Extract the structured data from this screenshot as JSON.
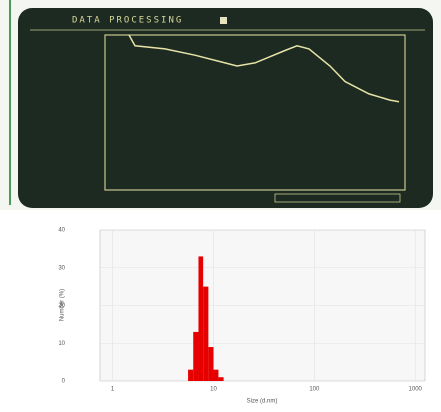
{
  "chart_data": [
    {
      "type": "line",
      "title": "DATA PROCESSING",
      "x": [
        8,
        10,
        20,
        30,
        40,
        44,
        50,
        55,
        60,
        64,
        68,
        75,
        80,
        88,
        95,
        98
      ],
      "values": [
        100,
        93,
        91,
        87,
        82,
        80,
        82,
        86,
        90,
        93,
        91,
        80,
        70,
        62,
        58,
        57
      ],
      "xlim": [
        0,
        100
      ],
      "ylim": [
        0,
        100
      ],
      "color": "#e6e4a6"
    },
    {
      "type": "histogram",
      "x_label": "Size (d.nm)",
      "y_label": "Number (%)",
      "bins": [
        5.6,
        6.3,
        7.1,
        7.9,
        8.9,
        10,
        11.2,
        12.6
      ],
      "values": [
        3,
        13,
        33,
        25,
        9,
        3,
        1
      ],
      "xlim": [
        0.75,
        1250
      ],
      "xticks": [
        1,
        10,
        100,
        1000
      ],
      "log_x": true,
      "ylim": [
        0,
        40
      ],
      "yticks": [
        0,
        10,
        20,
        30,
        40
      ],
      "grid": true,
      "color": "#e60000"
    }
  ]
}
